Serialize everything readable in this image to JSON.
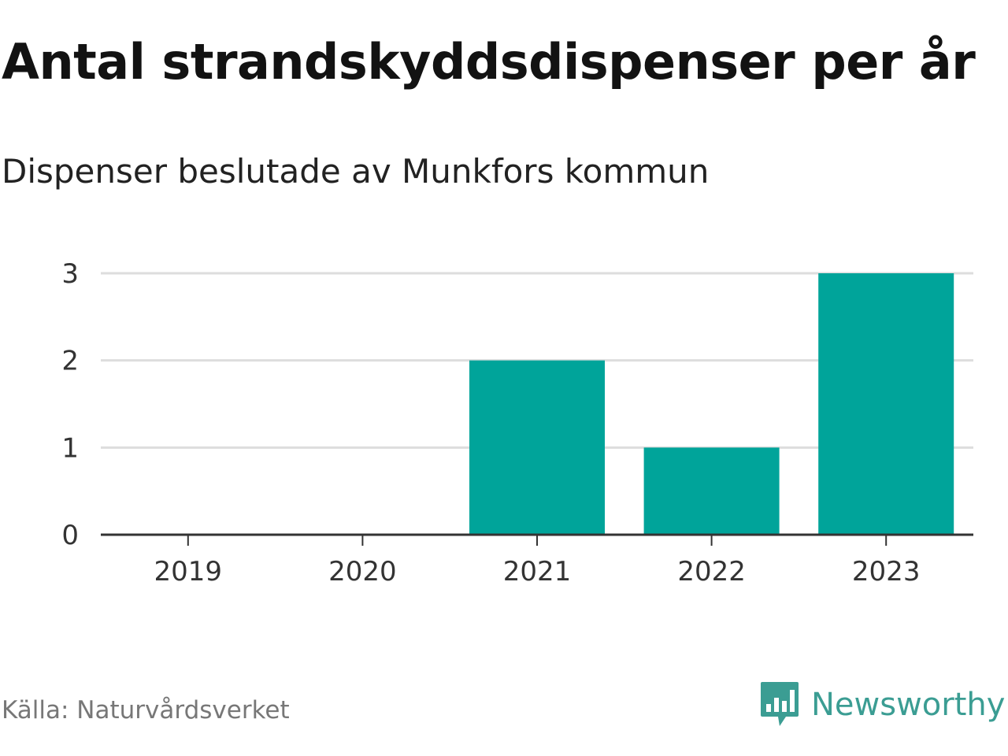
{
  "title": "Antal strandskyddsdispenser per år",
  "subtitle": "Dispenser beslutade av Munkfors kommun",
  "source": "Källa: Naturvårdsverket",
  "brand": {
    "name": "Newsworthy",
    "icon": "newsworthy-logo-icon",
    "color": "#3b9d93"
  },
  "colors": {
    "bar": "#00a49a",
    "grid": "#dddddd",
    "axis": "#333333"
  },
  "chart_data": {
    "type": "bar",
    "title": "Antal strandskyddsdispenser per år",
    "subtitle": "Dispenser beslutade av Munkfors kommun",
    "categories": [
      "2019",
      "2020",
      "2021",
      "2022",
      "2023"
    ],
    "values": [
      0,
      0,
      2,
      1,
      3
    ],
    "xlabel": "",
    "ylabel": "",
    "ylim": [
      0,
      3
    ],
    "yticks": [
      0,
      1,
      2,
      3
    ],
    "grid": true,
    "legend": "none"
  }
}
